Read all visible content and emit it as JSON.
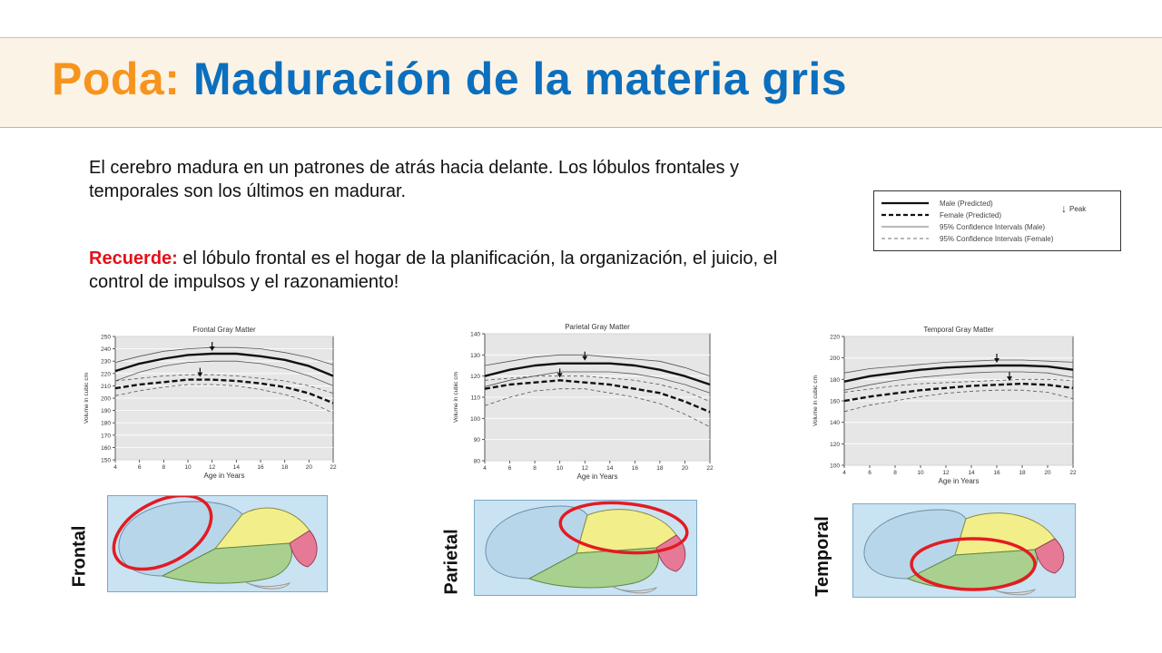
{
  "slide": {
    "title_accent": "Poda:",
    "title_main": "Maduración de la materia gris",
    "paragraph1": "El cerebro madura en un patrones de atrás hacia delante. Los lóbulos frontales y temporales son los últimos en madurar.",
    "reminder_label": "Recuerde:",
    "reminder_text": "el lóbulo frontal es el hogar de la planificación, la organización, el juicio, el control de impulsos y el razonamiento!"
  },
  "legend": {
    "items": [
      {
        "label": "Male (Predicted)",
        "style": "thick-solid"
      },
      {
        "label": "Female (Predicted)",
        "style": "thick-dashed"
      },
      {
        "label": "95% Confidence Intervals (Male)",
        "style": "thin-solid"
      },
      {
        "label": "95% Confidence Intervals (Female)",
        "style": "thin-dashed"
      }
    ],
    "peak_label": "Peak"
  },
  "brain_labels": {
    "frontal": "Frontal",
    "parietal": "Parietal",
    "temporal": "Temporal"
  },
  "colors": {
    "accent_orange": "#f7941d",
    "title_blue": "#0b6fbe",
    "reminder_red": "#e0121b",
    "frontal_lobe": "#b8d6ea",
    "parietal_lobe": "#f2ee8a",
    "temporal_lobe": "#a9d08e",
    "occipital_lobe": "#e67a96",
    "highlight_ring": "#e31b23"
  },
  "chart_data": [
    {
      "type": "line",
      "title": "Frontal Gray Matter",
      "xlabel": "Age in Years",
      "ylabel": "Volume in cubic cm",
      "xlim": [
        4,
        22
      ],
      "ylim": [
        150,
        250
      ],
      "xticks": [
        4,
        6,
        8,
        10,
        12,
        14,
        16,
        18,
        20,
        22
      ],
      "yticks": [
        150,
        160,
        170,
        180,
        190,
        200,
        210,
        220,
        230,
        240,
        250
      ],
      "x": [
        4,
        6,
        8,
        10,
        12,
        14,
        16,
        18,
        20,
        22
      ],
      "series": [
        {
          "name": "Male (Predicted)",
          "style": "thick-solid",
          "values": [
            222,
            228,
            232,
            235,
            236,
            236,
            234,
            231,
            226,
            218
          ]
        },
        {
          "name": "Female (Predicted)",
          "style": "thick-dashed",
          "values": [
            208,
            211,
            213,
            215,
            215,
            214,
            212,
            209,
            204,
            196
          ]
        },
        {
          "name": "95% Confidence Intervals (Male)",
          "style": "thin-solid",
          "values": [
            229,
            234,
            238,
            240,
            241,
            241,
            240,
            237,
            233,
            227
          ]
        },
        {
          "name": "95% Confidence Intervals (Male)",
          "style": "thin-solid",
          "values": [
            214,
            221,
            226,
            229,
            230,
            230,
            228,
            224,
            218,
            210
          ]
        },
        {
          "name": "95% Confidence Intervals (Female)",
          "style": "thin-dashed",
          "values": [
            202,
            206,
            209,
            211,
            211,
            210,
            207,
            203,
            197,
            188
          ]
        },
        {
          "name": "95% Confidence Intervals (Female)",
          "style": "thin-dashed",
          "values": [
            214,
            216,
            218,
            219,
            219,
            218,
            216,
            214,
            210,
            204
          ]
        }
      ],
      "peaks": [
        {
          "x": 12,
          "y": 236
        },
        {
          "x": 11,
          "y": 215
        }
      ]
    },
    {
      "type": "line",
      "title": "Parietal Gray Matter",
      "xlabel": "Age in Years",
      "ylabel": "Volume in cubic cm",
      "xlim": [
        4,
        22
      ],
      "ylim": [
        80,
        140
      ],
      "xticks": [
        4,
        6,
        8,
        10,
        12,
        14,
        16,
        18,
        20,
        22
      ],
      "yticks": [
        80,
        90,
        100,
        110,
        120,
        130,
        140
      ],
      "x": [
        4,
        6,
        8,
        10,
        12,
        14,
        16,
        18,
        20,
        22
      ],
      "series": [
        {
          "name": "Male (Predicted)",
          "style": "thick-solid",
          "values": [
            120,
            123,
            125,
            126,
            126,
            126,
            125,
            123,
            120,
            116
          ]
        },
        {
          "name": "Female (Predicted)",
          "style": "thick-dashed",
          "values": [
            114,
            116,
            117,
            118,
            117,
            116,
            114,
            112,
            108,
            103
          ]
        },
        {
          "name": "95% Confidence Intervals (Male)",
          "style": "thin-solid",
          "values": [
            125,
            127,
            129,
            130,
            130,
            129,
            128,
            127,
            124,
            120
          ]
        },
        {
          "name": "95% Confidence Intervals (Male)",
          "style": "thin-solid",
          "values": [
            115,
            118,
            120,
            122,
            122,
            122,
            121,
            119,
            116,
            112
          ]
        },
        {
          "name": "95% Confidence Intervals (Female)",
          "style": "thin-dashed",
          "values": [
            106,
            110,
            113,
            114,
            114,
            112,
            110,
            107,
            102,
            96
          ]
        },
        {
          "name": "95% Confidence Intervals (Female)",
          "style": "thin-dashed",
          "values": [
            118,
            119,
            120,
            120,
            120,
            119,
            118,
            116,
            113,
            108
          ]
        }
      ],
      "peaks": [
        {
          "x": 12,
          "y": 126
        },
        {
          "x": 10,
          "y": 118
        }
      ]
    },
    {
      "type": "line",
      "title": "Temporal Gray Matter",
      "xlabel": "Age in Years",
      "ylabel": "Volume in cubic cm",
      "xlim": [
        4,
        22
      ],
      "ylim": [
        100,
        220
      ],
      "xticks": [
        4,
        6,
        8,
        10,
        12,
        14,
        16,
        18,
        20,
        22
      ],
      "yticks": [
        100,
        120,
        140,
        160,
        180,
        200,
        220
      ],
      "x": [
        4,
        6,
        8,
        10,
        12,
        14,
        16,
        18,
        20,
        22
      ],
      "series": [
        {
          "name": "Male (Predicted)",
          "style": "thick-solid",
          "values": [
            178,
            183,
            186,
            189,
            191,
            192,
            193,
            193,
            192,
            189
          ]
        },
        {
          "name": "Female (Predicted)",
          "style": "thick-dashed",
          "values": [
            160,
            164,
            167,
            170,
            172,
            174,
            175,
            176,
            175,
            172
          ]
        },
        {
          "name": "95% Confidence Intervals (Male)",
          "style": "thin-solid",
          "values": [
            186,
            190,
            192,
            194,
            196,
            197,
            198,
            198,
            197,
            196
          ]
        },
        {
          "name": "95% Confidence Intervals (Male)",
          "style": "thin-solid",
          "values": [
            170,
            175,
            179,
            182,
            184,
            186,
            187,
            187,
            186,
            182
          ]
        },
        {
          "name": "95% Confidence Intervals (Female)",
          "style": "thin-dashed",
          "values": [
            150,
            156,
            160,
            164,
            167,
            169,
            170,
            170,
            168,
            162
          ]
        },
        {
          "name": "95% Confidence Intervals (Female)",
          "style": "thin-dashed",
          "values": [
            168,
            171,
            174,
            176,
            177,
            178,
            179,
            180,
            180,
            179
          ]
        }
      ],
      "peaks": [
        {
          "x": 16,
          "y": 193
        },
        {
          "x": 17,
          "y": 176
        }
      ]
    }
  ]
}
